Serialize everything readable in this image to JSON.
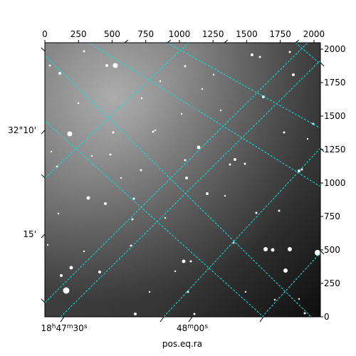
{
  "chart_data": {
    "type": "astronomical-image",
    "xlabel": "pos.eq.ra",
    "ylabel": "",
    "pixel_x_ticks": [
      "0",
      "250",
      "500",
      "750",
      "1000",
      "1250",
      "1500",
      "1750",
      "2000"
    ],
    "pixel_y_ticks": [
      "0",
      "250",
      "500",
      "750",
      "1000",
      "1250",
      "1500",
      "1750",
      "2000"
    ],
    "pixel_xlim": [
      0,
      2048
    ],
    "pixel_ylim": [
      0,
      2048
    ],
    "ra_ticks": [
      {
        "h": "18",
        "m": "47",
        "s": "30",
        "hide_hm": false
      },
      {
        "h": "",
        "m": "48",
        "s": "00",
        "hide_hm": true
      }
    ],
    "dec_ticks": [
      "32°10'",
      "15'"
    ],
    "grid_color": "#00e5e5",
    "image_style": "grayscale star field with bright gradient upper-left"
  }
}
